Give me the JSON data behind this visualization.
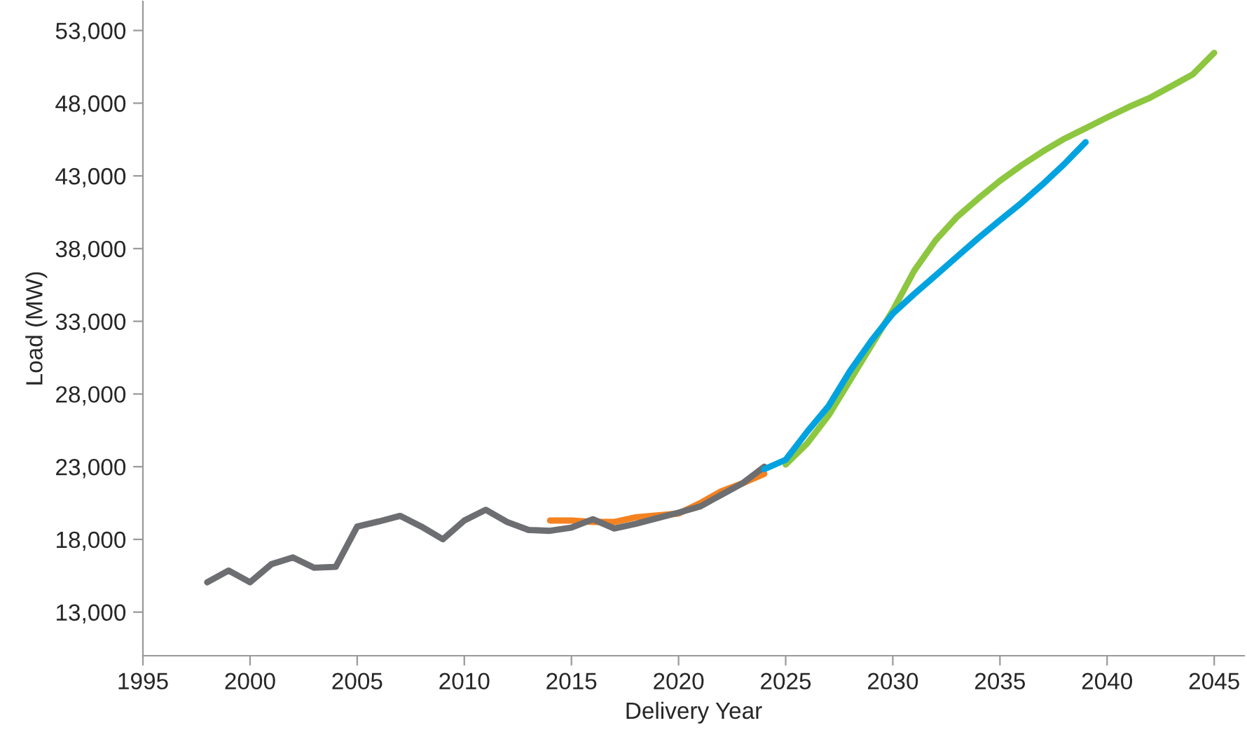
{
  "chart_data": {
    "type": "line",
    "xlabel": "Delivery Year",
    "ylabel": "Load (MW)",
    "xlim": [
      1995,
      2046.4
    ],
    "ylim": [
      10000,
      55000
    ],
    "xticks": [
      1995,
      2000,
      2005,
      2010,
      2015,
      2020,
      2025,
      2030,
      2035,
      2040,
      2045
    ],
    "yticks": [
      {
        "value": 13000,
        "label": "13,000"
      },
      {
        "value": 18000,
        "label": "18,000"
      },
      {
        "value": 23000,
        "label": "23,000"
      },
      {
        "value": 28000,
        "label": "28,000"
      },
      {
        "value": 33000,
        "label": "33,000"
      },
      {
        "value": 38000,
        "label": "38,000"
      },
      {
        "value": 43000,
        "label": "43,000"
      },
      {
        "value": 48000,
        "label": "48,000"
      },
      {
        "value": 53000,
        "label": "53,000"
      }
    ],
    "grid": false,
    "legend": false,
    "marker": "none",
    "line_style": "solid",
    "series": [
      {
        "color": "#f58220",
        "x": [
          2014,
          2015,
          2016,
          2017,
          2018,
          2019,
          2020,
          2021,
          2022,
          2023,
          2024
        ],
        "values": [
          19300,
          19300,
          19200,
          19200,
          19520,
          19650,
          19780,
          20490,
          21320,
          21870,
          22510
        ]
      },
      {
        "color": "#6d6e71",
        "x": [
          1998,
          1999,
          2000,
          2001,
          2002,
          2003,
          2004,
          2005,
          2006,
          2007,
          2008,
          2009,
          2010,
          2011,
          2012,
          2013,
          2014,
          2015,
          2016,
          2017,
          2018,
          2019,
          2020,
          2021,
          2022,
          2023,
          2024
        ],
        "values": [
          15050,
          15860,
          15050,
          16300,
          16760,
          16050,
          16110,
          18880,
          19230,
          19620,
          18880,
          18010,
          19300,
          20040,
          19200,
          18650,
          18590,
          18810,
          19390,
          18750,
          19070,
          19460,
          19840,
          20260,
          21070,
          21870,
          23000
        ]
      },
      {
        "color": "#8dc63f",
        "x": [
          2025,
          2026,
          2027,
          2028,
          2029,
          2030,
          2031,
          2032,
          2033,
          2034,
          2035,
          2036,
          2037,
          2038,
          2039,
          2040,
          2041,
          2042,
          2043,
          2044,
          2045
        ],
        "values": [
          23150,
          24600,
          26520,
          28930,
          31340,
          33750,
          36480,
          38570,
          40180,
          41460,
          42660,
          43720,
          44680,
          45550,
          46280,
          47020,
          47730,
          48370,
          49170,
          49980,
          51460
        ]
      },
      {
        "color": "#00a3e0",
        "x": [
          2024,
          2025,
          2026,
          2027,
          2028,
          2029,
          2030,
          2031,
          2032,
          2033,
          2034,
          2035,
          2036,
          2037,
          2038,
          2039
        ],
        "values": [
          22830,
          23480,
          25400,
          27170,
          29580,
          31670,
          33530,
          34880,
          36160,
          37450,
          38730,
          39950,
          41140,
          42430,
          43810,
          45320
        ]
      }
    ]
  }
}
